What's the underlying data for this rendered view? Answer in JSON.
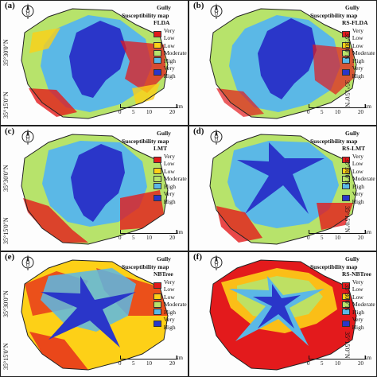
{
  "legend": {
    "gully_label": "Gully",
    "title": "Susceptibility map",
    "classes": [
      {
        "label": "Very Low",
        "color": "#e31a1c"
      },
      {
        "label": "Low",
        "color": "#fdd017"
      },
      {
        "label": "Moderate",
        "color": "#b7e36b"
      },
      {
        "label": "High",
        "color": "#5bb8e6"
      },
      {
        "label": "Very High",
        "color": "#2a36c9"
      }
    ]
  },
  "latitudes": {
    "top": "35°30'0\"N",
    "bottom": "35°15'0\"N"
  },
  "scale": {
    "ticks": [
      "0",
      "5",
      "10",
      "20"
    ],
    "unit": "km"
  },
  "panels": [
    {
      "letter": "(a)",
      "model": "FLDA",
      "style": "map-a"
    },
    {
      "letter": "(b)",
      "model": "RS-FLDA",
      "style": "map-b"
    },
    {
      "letter": "(c)",
      "model": "LMT",
      "style": "map-c"
    },
    {
      "letter": "(d)",
      "model": "RS-LMT",
      "style": "map-d"
    },
    {
      "letter": "(e)",
      "model": "NBTree",
      "style": "map-e"
    },
    {
      "letter": "(f)",
      "model": "RS-NBTree",
      "style": "map-f"
    }
  ],
  "compass_letters": {
    "north": "N",
    "south": "S",
    "east": "E",
    "west": "W"
  }
}
